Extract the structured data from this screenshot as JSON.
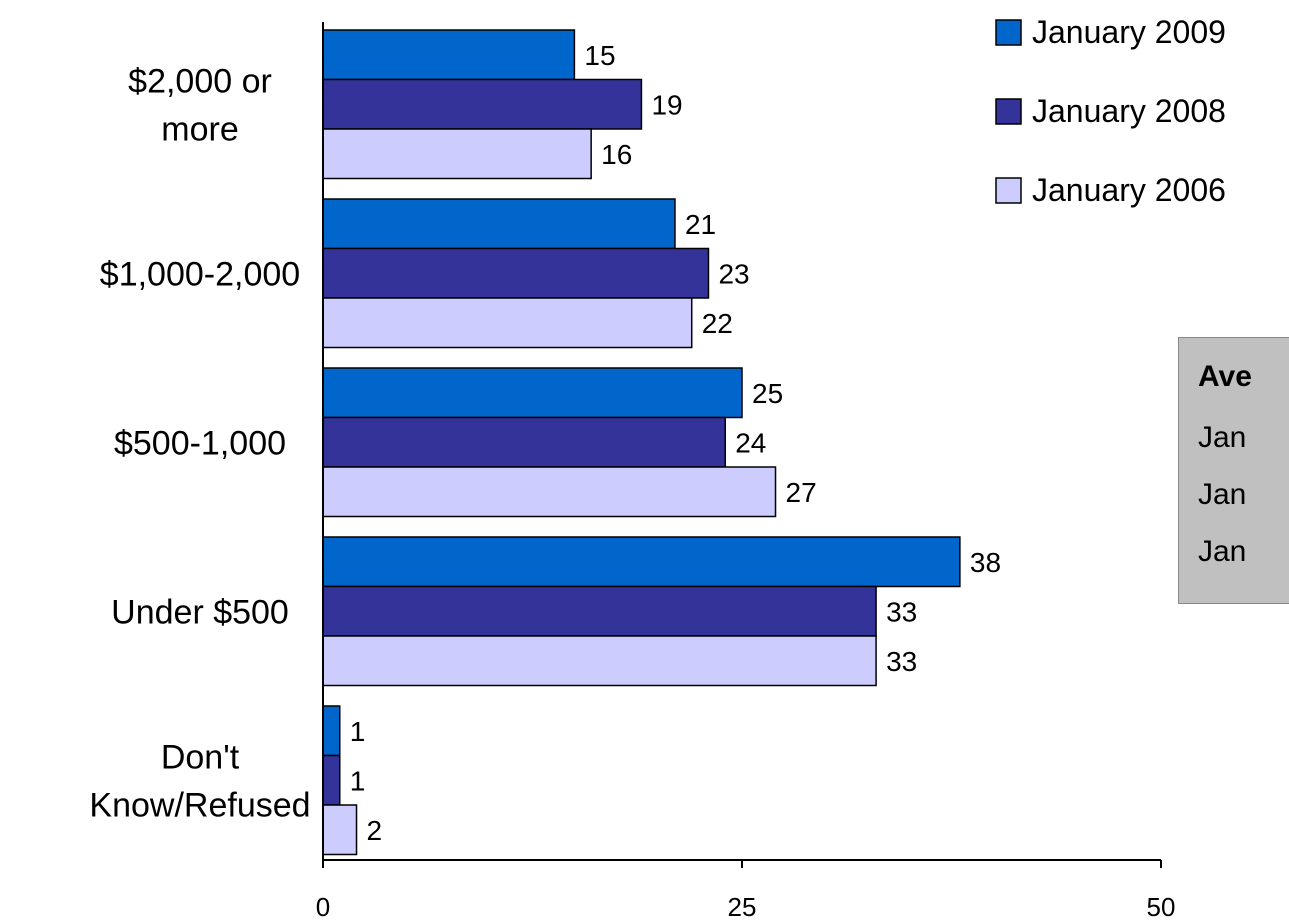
{
  "chart_data": {
    "type": "bar",
    "orientation": "horizontal",
    "categories": [
      "$2,000 or more",
      "$1,000-2,000",
      "$500-1,000",
      "Under $500",
      "Don't Know/Refused"
    ],
    "category_lines": [
      [
        "$2,000 or",
        "more"
      ],
      [
        "$1,000-2,000"
      ],
      [
        "$500-1,000"
      ],
      [
        "Under $500"
      ],
      [
        "Don't",
        "Know/Refused"
      ]
    ],
    "series": [
      {
        "name": "January 2009",
        "color": "#0066cc",
        "values": [
          15,
          21,
          25,
          38,
          1
        ]
      },
      {
        "name": "January 2008",
        "color": "#333399",
        "values": [
          19,
          23,
          24,
          33,
          1
        ]
      },
      {
        "name": "January 2006",
        "color": "#ccccff",
        "values": [
          16,
          22,
          27,
          33,
          2
        ]
      }
    ],
    "xlim": [
      0,
      50
    ],
    "xticks": [
      0,
      25,
      50
    ],
    "legend": "top-right",
    "grid": false
  },
  "average_box": {
    "title": "Ave",
    "rows": [
      "Jan",
      "Jan",
      "Jan"
    ]
  }
}
